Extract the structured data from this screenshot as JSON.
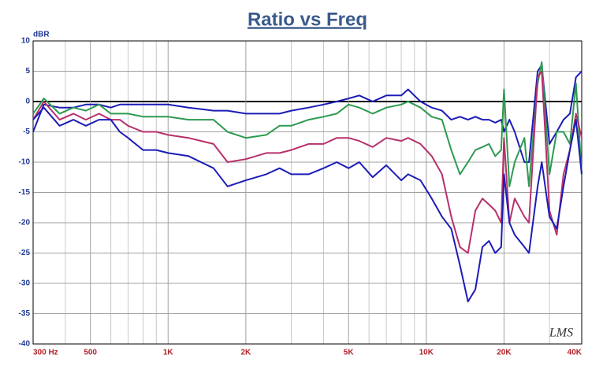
{
  "chart_data": {
    "type": "line",
    "title": "Ratio vs Freq",
    "y_label": "dBR",
    "watermark": "LMS",
    "xscale": "log",
    "grid": true,
    "x": [
      300,
      330,
      380,
      430,
      480,
      540,
      600,
      650,
      700,
      800,
      900,
      1000,
      1200,
      1500,
      1700,
      2000,
      2400,
      2700,
      3000,
      3500,
      4000,
      4500,
      5000,
      5500,
      6200,
      7000,
      8000,
      8500,
      9500,
      10500,
      11500,
      12500,
      13500,
      14500,
      15500,
      16500,
      17500,
      18500,
      19500,
      20000,
      21000,
      22000,
      24000,
      25000,
      27000,
      28000,
      30000,
      32000,
      34000,
      36000,
      38000,
      40000
    ],
    "series": [
      {
        "color": "#1c1cb8",
        "values": [
          -5,
          -0.5,
          -1,
          -1,
          -0.5,
          -0.5,
          -1,
          -0.5,
          -0.5,
          -0.5,
          -0.5,
          -0.5,
          -1,
          -1.5,
          -1.5,
          -2,
          -2,
          -2,
          -1.5,
          -1,
          -0.5,
          0,
          0.5,
          1,
          0,
          1,
          1,
          2,
          0,
          -1,
          -1.5,
          -3,
          -2.5,
          -3,
          -2.5,
          -3,
          -3,
          -3.5,
          -3,
          -5,
          -3,
          -5,
          -10,
          -10,
          5,
          6,
          -7,
          -5,
          -3,
          -2,
          4,
          5
        ]
      },
      {
        "color": "#2e9a50",
        "values": [
          -2,
          0.5,
          -2,
          -1,
          -1.5,
          -0.5,
          -2,
          -2,
          -2,
          -2.5,
          -2.5,
          -2.5,
          -3,
          -3,
          -5,
          -6,
          -5.5,
          -4,
          -4,
          -3,
          -2.5,
          -2,
          -0.5,
          -1,
          -2,
          -1,
          -0.5,
          0,
          -1,
          -2.5,
          -3,
          -8,
          -12,
          -10,
          -8,
          -7.5,
          -7,
          -9,
          -8,
          2,
          -14,
          -10,
          -6,
          -14,
          3,
          6.5,
          -12,
          -5,
          -5,
          -7,
          3,
          -12
        ]
      },
      {
        "color": "#b8306c",
        "values": [
          -3,
          0,
          -3,
          -2,
          -3,
          -2,
          -3,
          -3,
          -4,
          -5,
          -5,
          -5.5,
          -6,
          -7,
          -10,
          -9.5,
          -8.5,
          -8.5,
          -8,
          -7,
          -7,
          -6,
          -6,
          -6.5,
          -7.5,
          -6,
          -6.5,
          -6,
          -7,
          -9,
          -12,
          -19,
          -24,
          -25,
          -18,
          -16,
          -17,
          -18,
          -20,
          -6,
          -20,
          -16,
          -19,
          -20,
          4,
          5,
          -18,
          -22,
          -12,
          -8,
          -2,
          -6
        ]
      },
      {
        "color": "#1c1cb8",
        "values": [
          -3,
          -1,
          -4,
          -3,
          -4,
          -3,
          -3,
          -5,
          -6,
          -8,
          -8,
          -8.5,
          -9,
          -11,
          -14,
          -13,
          -12,
          -11,
          -12,
          -12,
          -11,
          -10,
          -11,
          -10,
          -12.5,
          -10.5,
          -13,
          -12,
          -13,
          -16,
          -19,
          -21,
          -27,
          -33,
          -31,
          -24,
          -23,
          -25,
          -24,
          -12,
          -20,
          -22,
          -24,
          -25,
          -14,
          -10,
          -19,
          -21,
          -14,
          -8,
          -3,
          -12
        ]
      }
    ],
    "xlim": [
      300,
      40000
    ],
    "xticks": [
      {
        "value": 300,
        "label": "300 Hz"
      },
      500,
      {
        "value": 1000,
        "label": "1K"
      },
      {
        "value": 2000,
        "label": "2K"
      },
      {
        "value": 5000,
        "label": "5K"
      },
      {
        "value": 10000,
        "label": "10K"
      },
      {
        "value": 20000,
        "label": "20K"
      },
      {
        "value": 40000,
        "label": "40K"
      }
    ],
    "xminor": [
      400,
      600,
      700,
      800,
      900,
      3000,
      4000,
      6000,
      7000,
      8000,
      9000,
      30000
    ],
    "ylim": [
      -40,
      10
    ],
    "yticks": [
      -40,
      -35,
      -30,
      -25,
      -20,
      -15,
      -10,
      -5,
      0,
      5,
      10
    ]
  }
}
